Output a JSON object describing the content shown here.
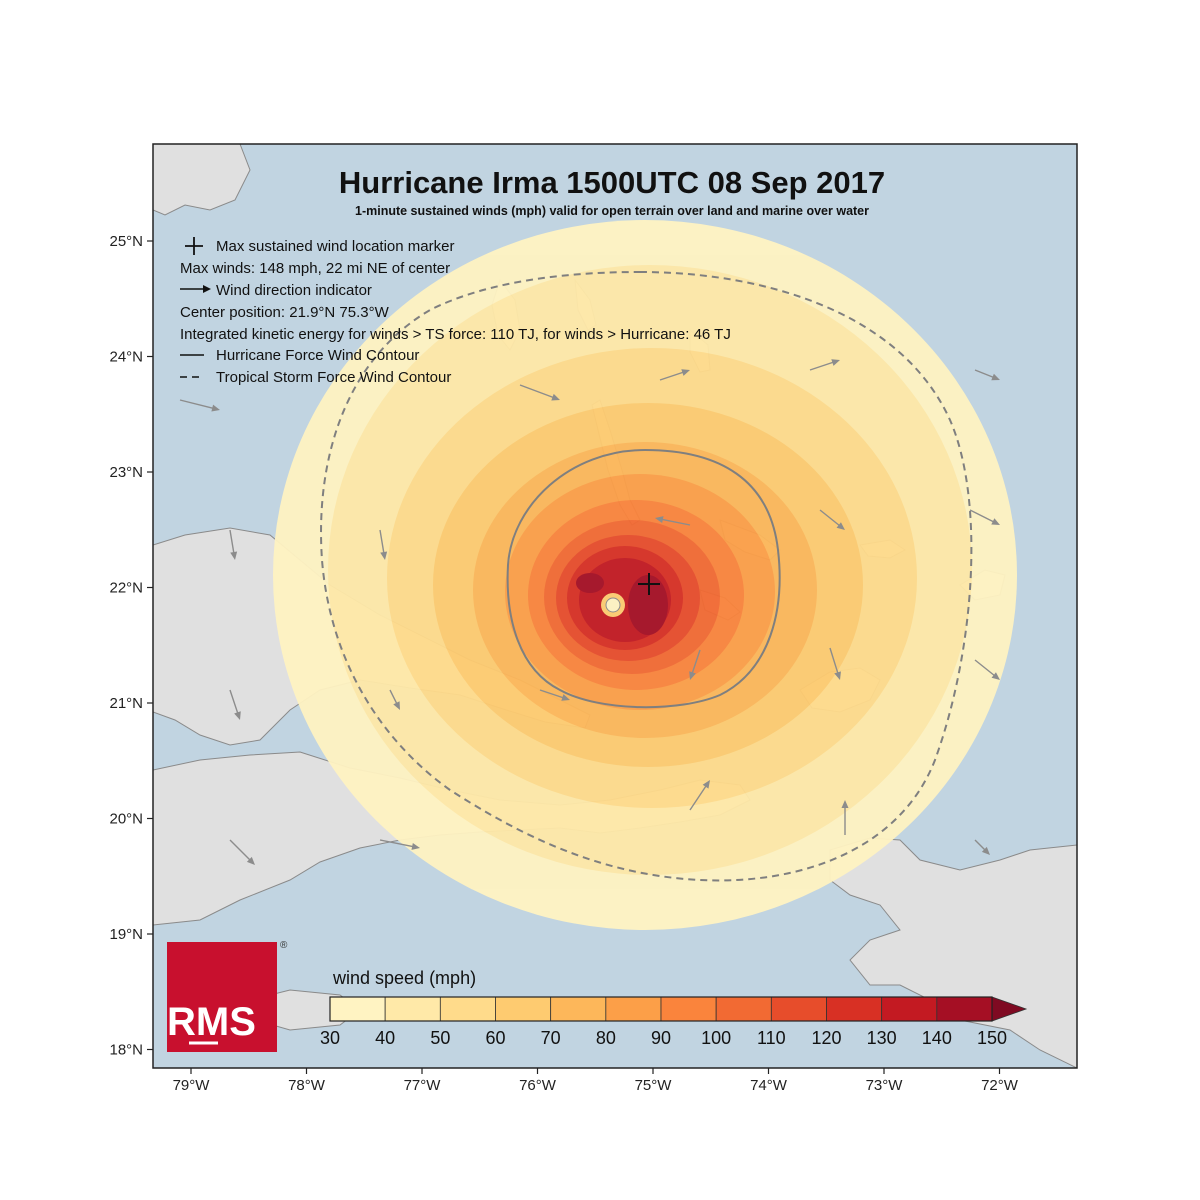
{
  "title": "Hurricane Irma 1500UTC 08 Sep 2017",
  "subtitle": "1-minute sustained winds (mph) valid for open terrain over land and marine over water",
  "legend": {
    "max_marker": "Max sustained wind location marker",
    "max_winds": "Max winds: 148 mph, 22 mi NE of center",
    "wind_dir": "Wind direction indicator",
    "center": "Center position: 21.9°N 75.3°W",
    "ike": "Integrated kinetic energy for winds > TS force: 110 TJ, for winds > Hurricane: 46 TJ",
    "hurricane_contour": "Hurricane Force Wind Contour",
    "ts_contour": "Tropical Storm Force Wind Contour"
  },
  "axes": {
    "lat_ticks": [
      "25°N",
      "24°N",
      "23°N",
      "22°N",
      "21°N",
      "20°N",
      "19°N",
      "18°N"
    ],
    "lon_ticks": [
      "79°W",
      "78°W",
      "77°W",
      "76°W",
      "75°W",
      "74°W",
      "73°W",
      "72°W"
    ],
    "lon_range": [
      -79.3,
      -71.3
    ],
    "lat_range": [
      17.9,
      25.8
    ]
  },
  "colorbar": {
    "title": "wind speed (mph)",
    "levels": [
      "30",
      "40",
      "50",
      "60",
      "70",
      "80",
      "90",
      "100",
      "110",
      "120",
      "130",
      "140",
      "150"
    ],
    "colors": [
      "#fff3c2",
      "#ffe9a8",
      "#ffdb8b",
      "#fecb70",
      "#fdb75a",
      "#fc9f48",
      "#fa843c",
      "#f26a33",
      "#e74d2b",
      "#d83024",
      "#c31a22",
      "#a50f24",
      "#7f0a22"
    ],
    "extend": "max"
  },
  "logo": {
    "text": "RMS",
    "registered": "®",
    "color": "#c8102e"
  },
  "colors": {
    "ocean": "#c1d4e1",
    "land": "#e0e0e0",
    "coast": "#8a8a8a",
    "contour": "#7f7f7f",
    "arrow": "#8c8c8c"
  },
  "storm": {
    "center": {
      "lat": 21.9,
      "lon": -75.3
    },
    "max_marker": {
      "lat": 22.05,
      "lon": -75.0
    },
    "max_wind_mph": 148
  }
}
